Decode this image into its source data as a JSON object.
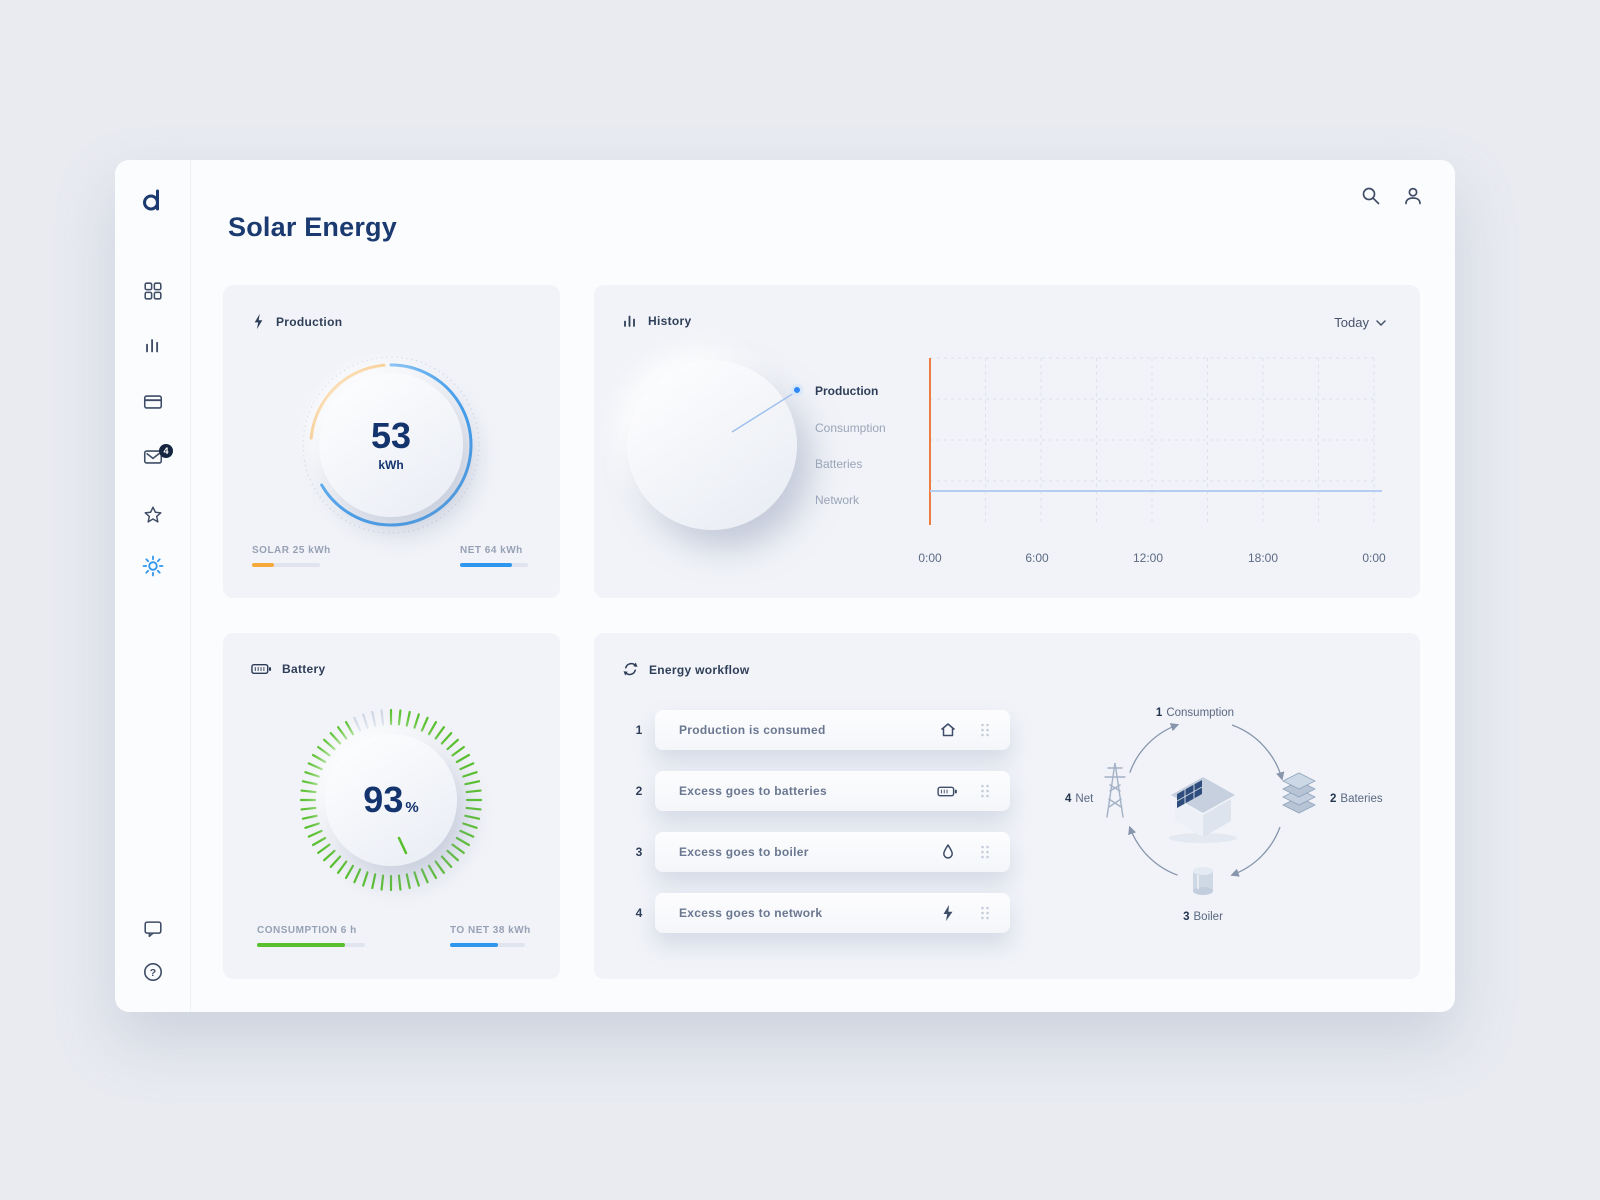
{
  "app": {
    "title": "Solar Energy"
  },
  "sidebar": {
    "mail_badge": "4",
    "help_glyph": "?"
  },
  "production": {
    "title": "Production",
    "value": "53",
    "unit": "kWh",
    "solar": "SOLAR 25 kWh",
    "net": "NET 64 kWh"
  },
  "history": {
    "title": "History",
    "range": "Today",
    "legend": [
      "Production",
      "Consumption",
      "Batteries",
      "Network"
    ],
    "x_ticks": [
      "0:00",
      "6:00",
      "12:00",
      "18:00",
      "0:00"
    ]
  },
  "battery": {
    "title": "Battery",
    "value": "93",
    "unit": "%",
    "consumption": "CONSUMPTION 6 h",
    "to_net": "TO NET 38 kWh"
  },
  "workflow": {
    "title": "Energy workflow",
    "steps": [
      {
        "num": "1",
        "text": "Production is consumed",
        "icon": "home-icon"
      },
      {
        "num": "2",
        "text": "Excess goes to batteries",
        "icon": "battery-icon"
      },
      {
        "num": "3",
        "text": "Excess goes to boiler",
        "icon": "droplet-icon"
      },
      {
        "num": "4",
        "text": "Excess goes to network",
        "icon": "bolt-icon"
      }
    ],
    "diagram": {
      "consumption_num": "1",
      "consumption": "Consumption",
      "batteries_num": "2",
      "batteries": "Bateries",
      "boiler_num": "3",
      "boiler": "Boiler",
      "net_num": "4",
      "net": "Net"
    }
  },
  "chart_data": {
    "type": "line",
    "title": "History",
    "x_ticks": [
      "0:00",
      "6:00",
      "12:00",
      "18:00",
      "0:00"
    ],
    "series": [
      {
        "name": "Production",
        "color": "#b5cdf2",
        "note": "flat line near zero across whole day",
        "values": [
          0,
          0,
          0,
          0,
          0
        ]
      },
      {
        "name": "day-start-marker",
        "color": "#ee7d42",
        "note": "orange vertical line at 0:00"
      }
    ],
    "grid": true,
    "legend_position": "left"
  },
  "colors": {
    "accent_blue": "#2f96ee",
    "accent_orange": "#f5a93b",
    "accent_green": "#58c02c",
    "navy": "#14346e"
  }
}
